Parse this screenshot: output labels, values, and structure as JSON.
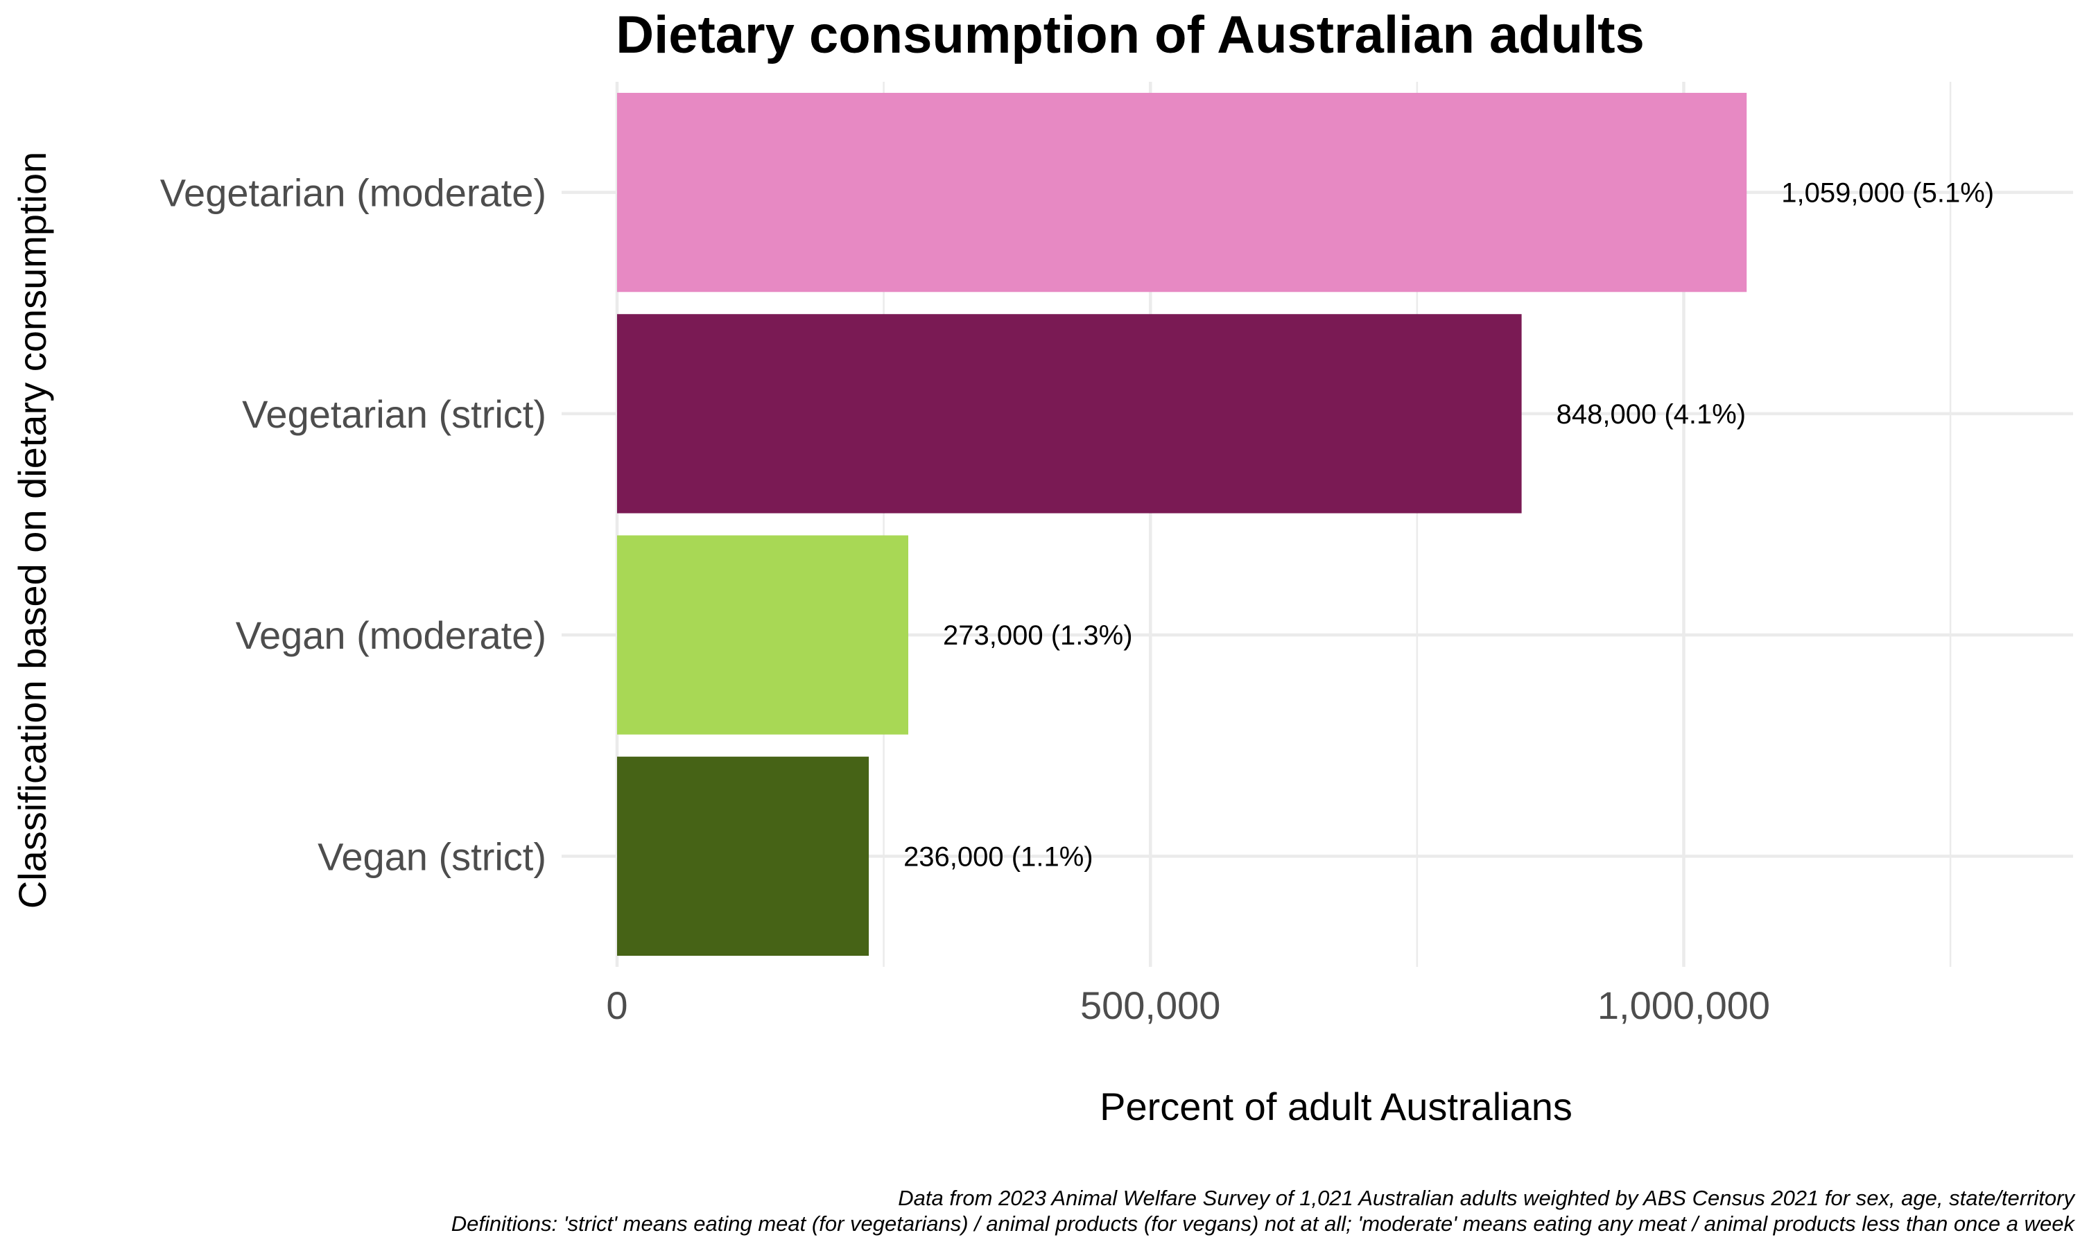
{
  "chart_data": {
    "type": "bar",
    "orientation": "horizontal",
    "title": "Dietary consumption of Australian adults",
    "xlabel": "Percent of adult Australians",
    "ylabel": "Classification based on dietary consumption",
    "categories": [
      "Vegetarian (moderate)",
      "Vegetarian (strict)",
      "Vegan (moderate)",
      "Vegan (strict)"
    ],
    "values": [
      1059000,
      848000,
      273000,
      236000
    ],
    "data_labels": [
      "1,059,000 (5.1%)",
      "848,000 (4.1%)",
      "273,000 (1.3%)",
      "236,000 (1.1%)"
    ],
    "colors": [
      "#e789c3",
      "#7a1a54",
      "#a8d855",
      "#466316"
    ],
    "xlim": [
      0,
      1365000
    ],
    "xticks": [
      0,
      500000,
      1000000
    ],
    "xtick_labels": [
      "0",
      "500,000",
      "1,000,000"
    ],
    "grid": true,
    "legend": "none"
  },
  "caption": {
    "line1": "Data from 2023 Animal Welfare Survey of 1,021 Australian adults weighted by ABS Census 2021 for sex, age, state/territory",
    "line2": "Definitions: 'strict' means eating meat (for vegetarians) / animal products (for vegans) not at all; 'moderate' means eating any meat / animal products less than once a week"
  }
}
